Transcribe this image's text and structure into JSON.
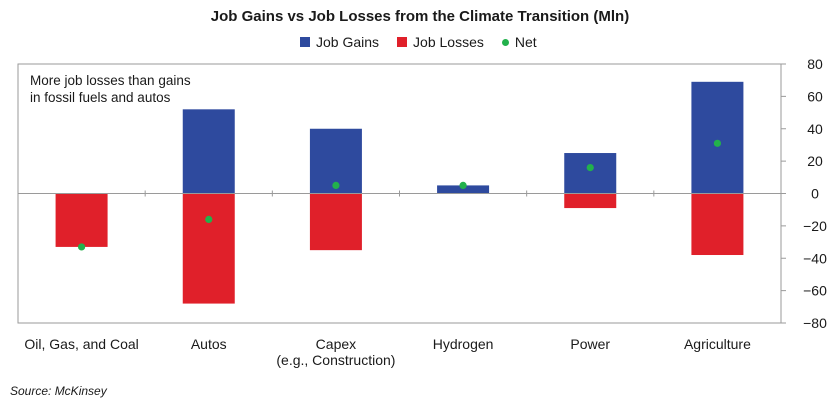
{
  "chart_data": {
    "type": "bar",
    "title": "Job Gains vs Job Losses from the Climate Transition (Mln)",
    "categories": [
      [
        "Oil, Gas, and Coal"
      ],
      [
        "Autos"
      ],
      [
        "Capex",
        "(e.g., Construction)"
      ],
      [
        "Hydrogen"
      ],
      [
        "Power"
      ],
      [
        "Agriculture"
      ]
    ],
    "series": [
      {
        "name": "Job Gains",
        "values": [
          0,
          52,
          40,
          5,
          25,
          69
        ],
        "color": "#2E4A9E"
      },
      {
        "name": "Job Losses",
        "values": [
          -33,
          -68,
          -35,
          0,
          -9,
          -38
        ],
        "color": "#E0202A"
      },
      {
        "name": "Net",
        "values": [
          -33,
          -16,
          5,
          5,
          16,
          31
        ],
        "color": "#22B14C"
      }
    ],
    "ylim": [
      -80,
      80
    ],
    "yticks": [
      "80",
      "60",
      "40",
      "20",
      "0",
      "−20",
      "−40",
      "−60",
      "−80"
    ],
    "ytick_values": [
      80,
      60,
      40,
      20,
      0,
      -20,
      -40,
      -60,
      -80
    ],
    "y_axis_side": "right",
    "annotation": "More job losses than gains\nin fossil fuels and autos",
    "legend_position": "top-center",
    "grid": false
  },
  "source": "Source: McKinsey"
}
